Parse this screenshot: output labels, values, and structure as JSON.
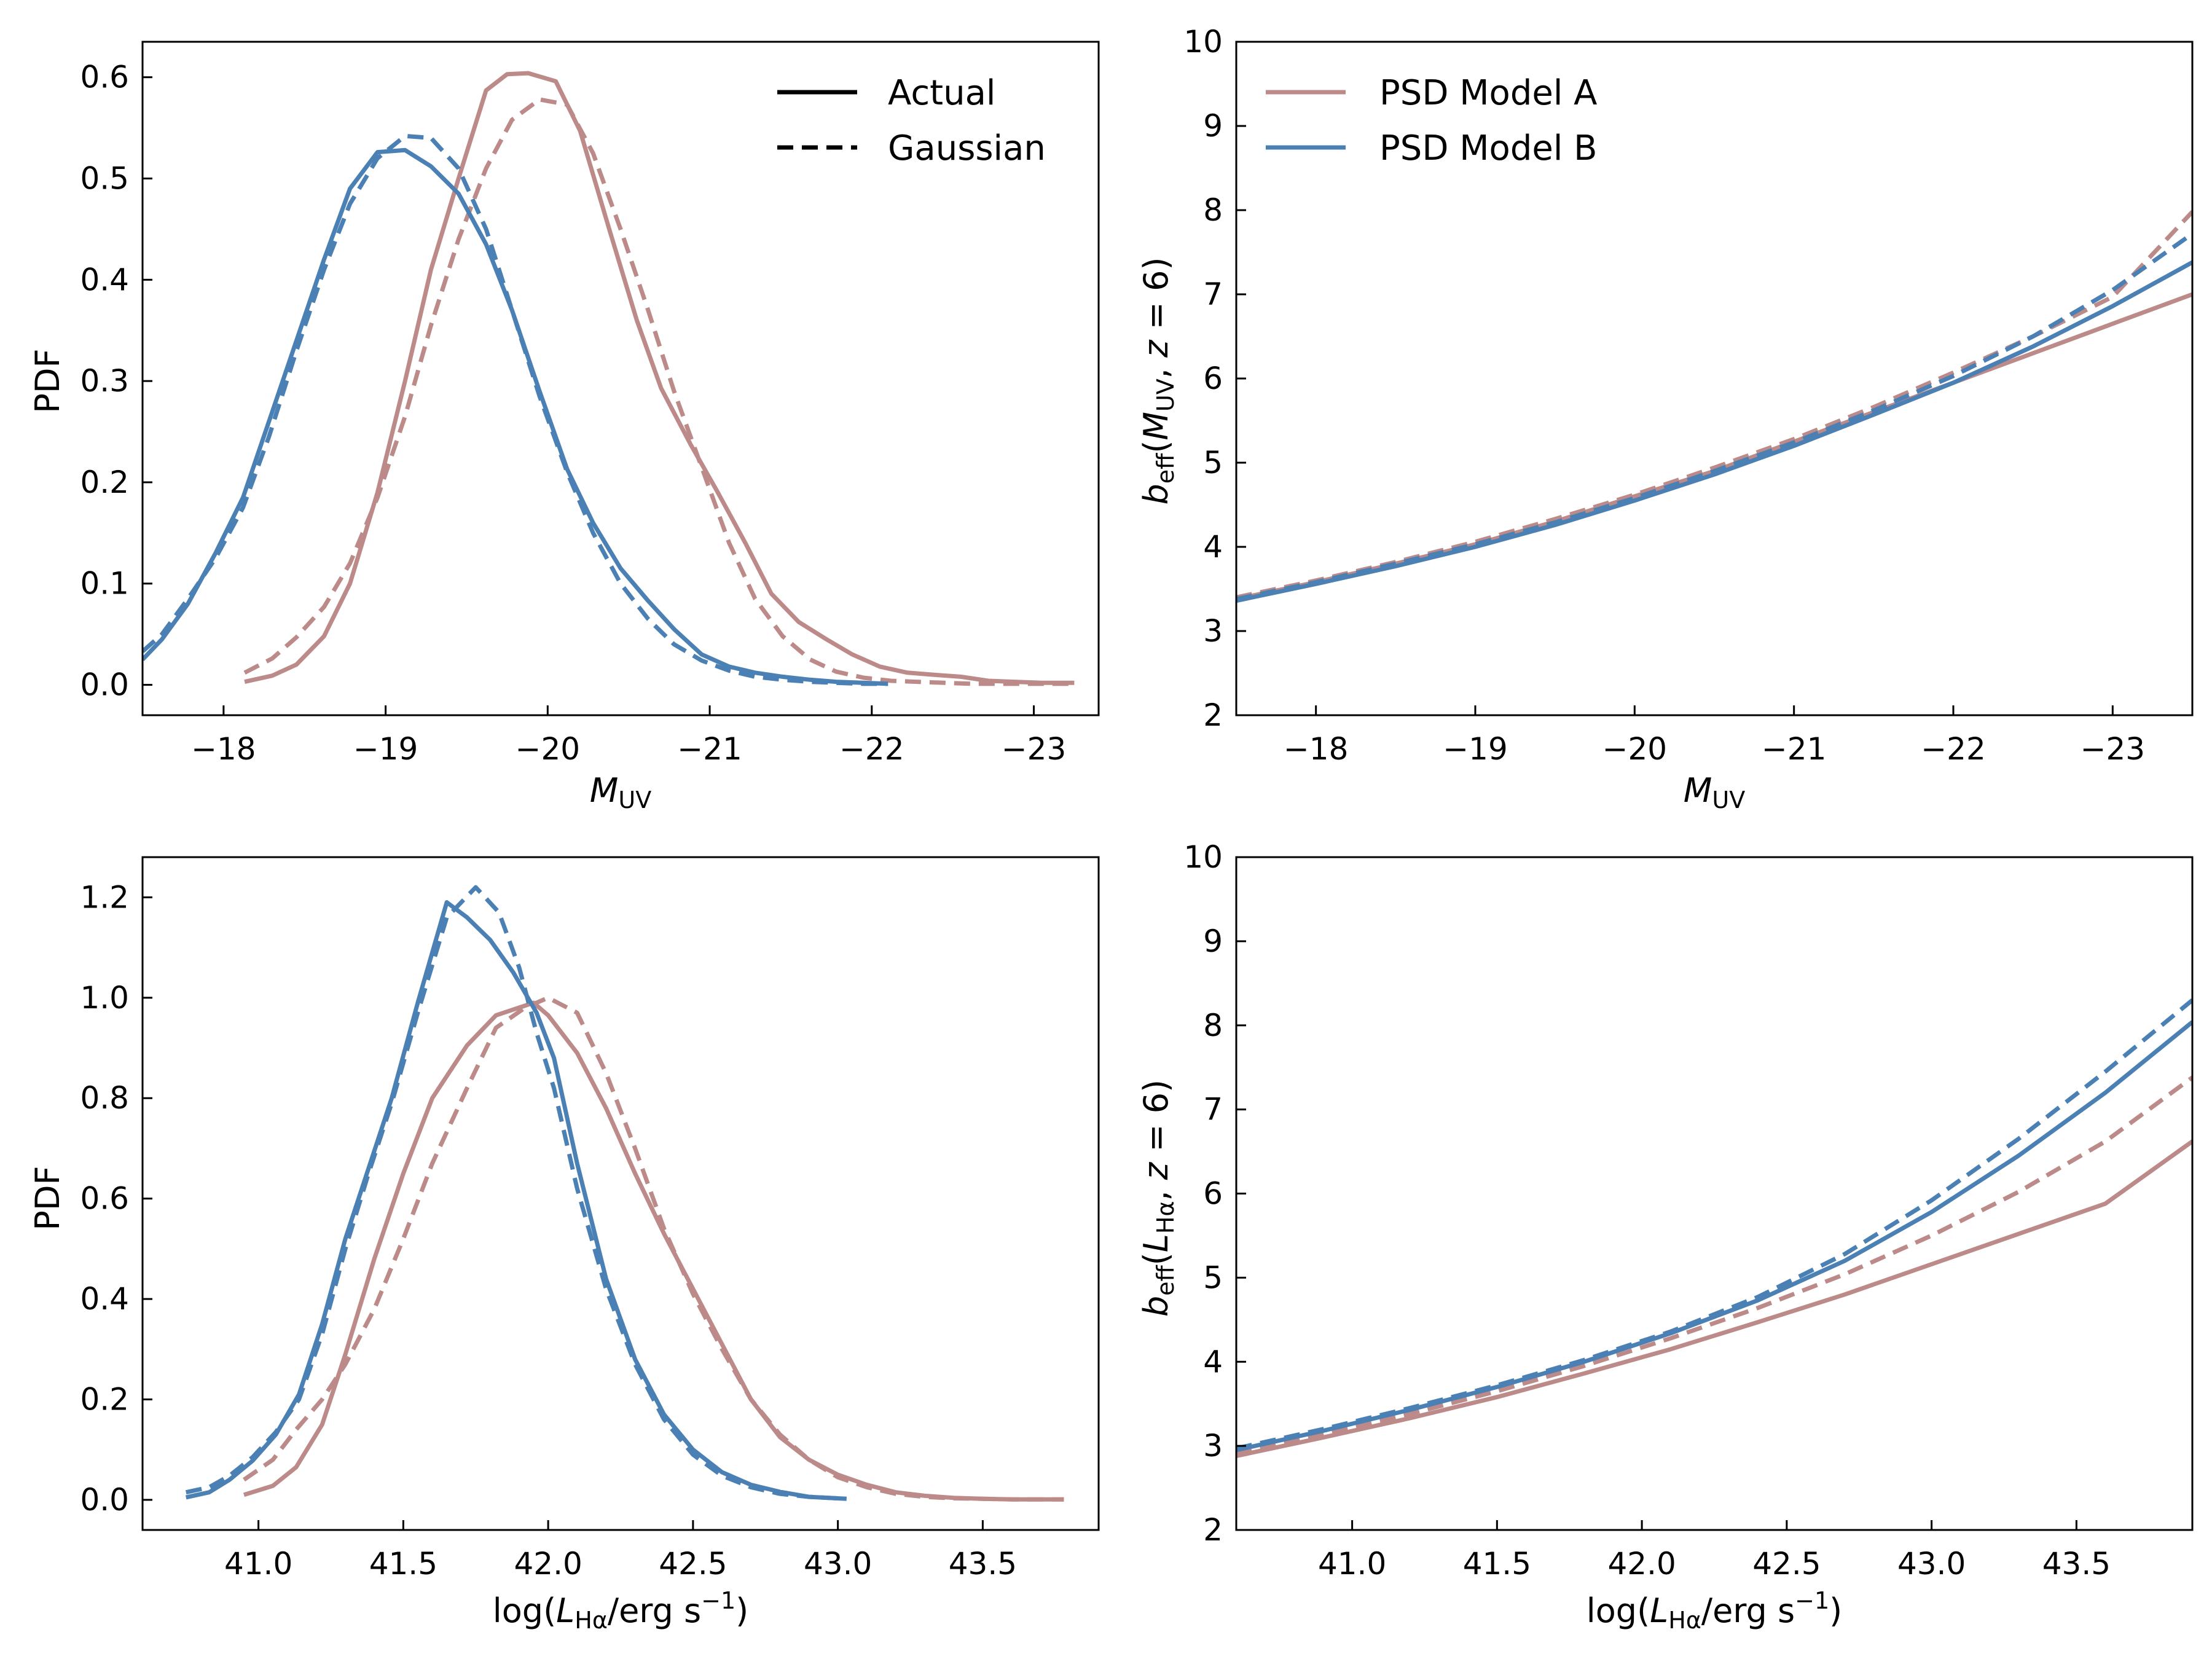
{
  "colors": {
    "model_a": "#bc8a89",
    "model_b": "#4a80b4"
  },
  "legend_style": [
    {
      "name": "Actual",
      "dash": false
    },
    {
      "name": "Gaussian",
      "dash": true
    }
  ],
  "legend_models": [
    {
      "name": "PSD Model A",
      "color": "#bc8a89"
    },
    {
      "name": "PSD Model B",
      "color": "#4a80b4"
    }
  ],
  "chart_data": [
    {
      "id": "muv_pdf",
      "type": "line",
      "position": "top-left",
      "xlabel": "M_UV",
      "ylabel": "PDF",
      "x_inverted": true,
      "xlim": [
        -17.5,
        -23.4
      ],
      "ylim": [
        -0.03,
        0.635
      ],
      "xticks": [
        -18,
        -19,
        -20,
        -21,
        -22,
        -23
      ],
      "xtick_labels": [
        "−18",
        "−19",
        "−20",
        "−21",
        "−22",
        "−23"
      ],
      "yticks": [
        0,
        0.1,
        0.2,
        0.3,
        0.4,
        0.5,
        0.6
      ],
      "ytick_labels": [
        "0.0",
        "0.1",
        "0.2",
        "0.3",
        "0.4",
        "0.5",
        "0.6"
      ],
      "legend": "top-right",
      "series": [
        {
          "name": "PSD Model A - Actual",
          "color": "model_a",
          "dash": false,
          "x": [
            -18.13,
            -18.3,
            -18.45,
            -18.62,
            -18.78,
            -18.95,
            -19.12,
            -19.28,
            -19.45,
            -19.62,
            -19.75,
            -19.88,
            -20.05,
            -20.2,
            -20.38,
            -20.55,
            -20.7,
            -20.88,
            -21.05,
            -21.22,
            -21.38,
            -21.55,
            -21.72,
            -21.88,
            -22.05,
            -22.22,
            -22.38,
            -22.55,
            -22.72,
            -22.88,
            -23.05,
            -23.25
          ],
          "y": [
            0.003,
            0.009,
            0.02,
            0.048,
            0.1,
            0.19,
            0.3,
            0.41,
            0.5,
            0.587,
            0.603,
            0.604,
            0.596,
            0.547,
            0.45,
            0.36,
            0.293,
            0.238,
            0.19,
            0.14,
            0.09,
            0.062,
            0.045,
            0.03,
            0.018,
            0.012,
            0.01,
            0.008,
            0.004,
            0.003,
            0.002,
            0.002
          ]
        },
        {
          "name": "PSD Model A - Gaussian",
          "color": "model_a",
          "dash": true,
          "x": [
            -18.13,
            -18.3,
            -18.45,
            -18.62,
            -18.78,
            -18.95,
            -19.12,
            -19.28,
            -19.45,
            -19.62,
            -19.78,
            -19.95,
            -20.12,
            -20.28,
            -20.45,
            -20.62,
            -20.78,
            -20.95,
            -21.12,
            -21.28,
            -21.45,
            -21.62,
            -21.78,
            -21.95,
            -22.12,
            -22.28,
            -22.45,
            -22.62,
            -22.78,
            -22.95,
            -23.12,
            -23.25
          ],
          "y": [
            0.012,
            0.026,
            0.047,
            0.077,
            0.12,
            0.185,
            0.265,
            0.355,
            0.44,
            0.51,
            0.558,
            0.578,
            0.573,
            0.525,
            0.45,
            0.37,
            0.29,
            0.215,
            0.14,
            0.085,
            0.048,
            0.025,
            0.013,
            0.007,
            0.004,
            0.003,
            0.002,
            0.001,
            0.001,
            0.001,
            0.001,
            0.001
          ]
        },
        {
          "name": "PSD Model B - Actual",
          "color": "model_b",
          "dash": false,
          "x": [
            -17.5,
            -17.62,
            -17.78,
            -17.95,
            -18.12,
            -18.28,
            -18.45,
            -18.62,
            -18.78,
            -18.95,
            -19.12,
            -19.28,
            -19.45,
            -19.62,
            -19.78,
            -19.95,
            -20.12,
            -20.28,
            -20.45,
            -20.62,
            -20.78,
            -20.95,
            -21.12,
            -21.28,
            -21.45,
            -21.62,
            -21.78,
            -21.95,
            -22.1
          ],
          "y": [
            0.025,
            0.045,
            0.08,
            0.13,
            0.185,
            0.26,
            0.34,
            0.42,
            0.49,
            0.526,
            0.528,
            0.512,
            0.485,
            0.435,
            0.37,
            0.29,
            0.213,
            0.16,
            0.115,
            0.083,
            0.055,
            0.03,
            0.018,
            0.012,
            0.008,
            0.005,
            0.003,
            0.002,
            0.001
          ]
        },
        {
          "name": "PSD Model B - Gaussian",
          "color": "model_b",
          "dash": true,
          "x": [
            -17.5,
            -17.62,
            -17.78,
            -17.95,
            -18.12,
            -18.28,
            -18.45,
            -18.62,
            -18.78,
            -18.95,
            -19.12,
            -19.28,
            -19.45,
            -19.62,
            -19.78,
            -19.95,
            -20.12,
            -20.28,
            -20.45,
            -20.62,
            -20.78,
            -20.95,
            -21.12,
            -21.28,
            -21.45,
            -21.62,
            -21.78,
            -21.95,
            -22.1
          ],
          "y": [
            0.033,
            0.05,
            0.085,
            0.125,
            0.175,
            0.245,
            0.33,
            0.41,
            0.475,
            0.52,
            0.542,
            0.54,
            0.51,
            0.45,
            0.37,
            0.285,
            0.21,
            0.15,
            0.1,
            0.065,
            0.04,
            0.024,
            0.014,
            0.008,
            0.005,
            0.003,
            0.002,
            0.001,
            0.001
          ]
        }
      ]
    },
    {
      "id": "muv_bias",
      "type": "line",
      "position": "top-right",
      "xlabel": "M_UV",
      "ylabel": "b_eff(M_UV, z = 6)",
      "x_inverted": true,
      "xlim": [
        -17.5,
        -23.5
      ],
      "ylim": [
        2,
        10
      ],
      "xticks": [
        -18,
        -19,
        -20,
        -21,
        -22,
        -23
      ],
      "xtick_labels": [
        "−18",
        "−19",
        "−20",
        "−21",
        "−22",
        "−23"
      ],
      "yticks": [
        2,
        3,
        4,
        5,
        6,
        7,
        8,
        9,
        10
      ],
      "ytick_labels": [
        "2",
        "3",
        "4",
        "5",
        "6",
        "7",
        "8",
        "9",
        "10"
      ],
      "legend": "top-left",
      "series": [
        {
          "name": "PSD Model A - Actual",
          "color": "model_a",
          "dash": false,
          "x": [
            -17.5,
            -18,
            -18.5,
            -19,
            -19.5,
            -20,
            -20.5,
            -21,
            -21.5,
            -22,
            -22.5,
            -23,
            -23.5
          ],
          "y": [
            3.38,
            3.58,
            3.8,
            4.03,
            4.3,
            4.6,
            4.9,
            5.25,
            5.6,
            5.95,
            6.3,
            6.65,
            7.0
          ]
        },
        {
          "name": "PSD Model A - Gaussian",
          "color": "model_a",
          "dash": true,
          "x": [
            -17.5,
            -18,
            -18.5,
            -19,
            -19.5,
            -20,
            -20.5,
            -21,
            -21.5,
            -22,
            -22.5,
            -23,
            -23.5
          ],
          "y": [
            3.4,
            3.6,
            3.82,
            4.06,
            4.33,
            4.62,
            4.94,
            5.28,
            5.66,
            6.07,
            6.5,
            6.97,
            7.98
          ]
        },
        {
          "name": "PSD Model B - Actual",
          "color": "model_b",
          "dash": false,
          "x": [
            -17.5,
            -18,
            -18.5,
            -19,
            -19.5,
            -20,
            -20.5,
            -21,
            -21.5,
            -22,
            -22.5,
            -23,
            -23.5
          ],
          "y": [
            3.36,
            3.56,
            3.77,
            4.0,
            4.26,
            4.55,
            4.86,
            5.2,
            5.57,
            5.95,
            6.38,
            6.86,
            7.38
          ]
        },
        {
          "name": "PSD Model B - Gaussian",
          "color": "model_b",
          "dash": true,
          "x": [
            -17.5,
            -18,
            -18.5,
            -19,
            -19.5,
            -20,
            -20.5,
            -21,
            -21.5,
            -22,
            -22.5,
            -23,
            -23.5
          ],
          "y": [
            3.38,
            3.58,
            3.8,
            4.03,
            4.29,
            4.58,
            4.9,
            5.24,
            5.62,
            6.03,
            6.5,
            7.05,
            7.72
          ]
        }
      ]
    },
    {
      "id": "lha_pdf",
      "type": "line",
      "position": "bottom-left",
      "xlabel": "log(L_Hα / erg s^-1)",
      "ylabel": "PDF",
      "x_inverted": false,
      "xlim": [
        40.6,
        43.9
      ],
      "ylim": [
        -0.06,
        1.28
      ],
      "xticks": [
        41.0,
        41.5,
        42.0,
        42.5,
        43.0,
        43.5
      ],
      "xtick_labels": [
        "41.0",
        "41.5",
        "42.0",
        "42.5",
        "43.0",
        "43.5"
      ],
      "yticks": [
        0,
        0.2,
        0.4,
        0.6,
        0.8,
        1.0,
        1.2
      ],
      "ytick_labels": [
        "0.0",
        "0.2",
        "0.4",
        "0.6",
        "0.8",
        "1.0",
        "1.2"
      ],
      "series": [
        {
          "name": "PSD Model A - Actual",
          "color": "model_a",
          "dash": false,
          "x": [
            40.95,
            41.05,
            41.13,
            41.22,
            41.3,
            41.4,
            41.5,
            41.6,
            41.72,
            41.82,
            41.95,
            42.0,
            42.1,
            42.2,
            42.3,
            42.4,
            42.5,
            42.6,
            42.7,
            42.8,
            42.9,
            43.0,
            43.1,
            43.2,
            43.3,
            43.4,
            43.5,
            43.6,
            43.78
          ],
          "y": [
            0.01,
            0.028,
            0.065,
            0.15,
            0.29,
            0.48,
            0.65,
            0.8,
            0.905,
            0.965,
            0.99,
            0.965,
            0.89,
            0.78,
            0.65,
            0.53,
            0.42,
            0.31,
            0.2,
            0.125,
            0.08,
            0.05,
            0.03,
            0.015,
            0.008,
            0.004,
            0.002,
            0.001,
            0.001
          ]
        },
        {
          "name": "PSD Model A - Gaussian",
          "color": "model_a",
          "dash": true,
          "x": [
            40.95,
            41.05,
            41.13,
            41.22,
            41.3,
            41.4,
            41.5,
            41.6,
            41.72,
            41.82,
            41.92,
            42.0,
            42.1,
            42.2,
            42.3,
            42.4,
            42.5,
            42.6,
            42.7,
            42.8,
            42.9,
            43.0,
            43.1,
            43.2,
            43.3,
            43.4,
            43.5,
            43.6,
            43.78
          ],
          "y": [
            0.04,
            0.08,
            0.14,
            0.2,
            0.27,
            0.38,
            0.52,
            0.67,
            0.82,
            0.94,
            0.98,
            1.0,
            0.97,
            0.85,
            0.7,
            0.54,
            0.41,
            0.3,
            0.2,
            0.13,
            0.08,
            0.045,
            0.025,
            0.012,
            0.006,
            0.003,
            0.002,
            0.001,
            0.001
          ]
        },
        {
          "name": "PSD Model B - Actual",
          "color": "model_b",
          "dash": false,
          "x": [
            40.75,
            40.83,
            40.9,
            40.98,
            41.06,
            41.14,
            41.22,
            41.3,
            41.38,
            41.46,
            41.55,
            41.65,
            41.72,
            41.8,
            41.88,
            41.96,
            42.02,
            42.1,
            42.2,
            42.3,
            42.4,
            42.5,
            42.6,
            42.7,
            42.8,
            42.9,
            43.03
          ],
          "y": [
            0.005,
            0.015,
            0.04,
            0.078,
            0.13,
            0.21,
            0.35,
            0.52,
            0.66,
            0.8,
            0.99,
            1.19,
            1.16,
            1.115,
            1.05,
            0.97,
            0.88,
            0.67,
            0.44,
            0.28,
            0.17,
            0.1,
            0.055,
            0.03,
            0.016,
            0.006,
            0.002
          ]
        },
        {
          "name": "PSD Model B - Gaussian",
          "color": "model_b",
          "dash": true,
          "x": [
            40.75,
            40.83,
            40.9,
            40.98,
            41.06,
            41.14,
            41.22,
            41.3,
            41.38,
            41.46,
            41.55,
            41.65,
            41.75,
            41.83,
            41.9,
            41.96,
            42.02,
            42.1,
            42.2,
            42.3,
            42.4,
            42.5,
            42.6,
            42.7,
            42.8,
            42.9,
            43.0
          ],
          "y": [
            0.015,
            0.025,
            0.048,
            0.085,
            0.135,
            0.2,
            0.33,
            0.5,
            0.65,
            0.79,
            0.97,
            1.16,
            1.22,
            1.17,
            1.06,
            0.93,
            0.82,
            0.62,
            0.42,
            0.27,
            0.16,
            0.09,
            0.048,
            0.025,
            0.012,
            0.006,
            0.003
          ]
        }
      ]
    },
    {
      "id": "lha_bias",
      "type": "line",
      "position": "bottom-right",
      "xlabel": "log(L_Hα / erg s^-1)",
      "ylabel": "b_eff(L_Hα, z = 6)",
      "x_inverted": false,
      "xlim": [
        40.6,
        43.9
      ],
      "ylim": [
        2,
        10
      ],
      "xticks": [
        41.0,
        41.5,
        42.0,
        42.5,
        43.0,
        43.5
      ],
      "xtick_labels": [
        "41.0",
        "41.5",
        "42.0",
        "42.5",
        "43.0",
        "43.5"
      ],
      "yticks": [
        2,
        3,
        4,
        5,
        6,
        7,
        8,
        9,
        10
      ],
      "ytick_labels": [
        "2",
        "3",
        "4",
        "5",
        "6",
        "7",
        "8",
        "9",
        "10"
      ],
      "series": [
        {
          "name": "PSD Model A - Actual",
          "color": "model_a",
          "dash": false,
          "x": [
            40.6,
            40.9,
            41.2,
            41.5,
            41.8,
            42.1,
            42.4,
            42.7,
            43.0,
            43.3,
            43.6,
            43.9
          ],
          "y": [
            2.88,
            3.1,
            3.33,
            3.58,
            3.86,
            4.15,
            4.47,
            4.8,
            5.16,
            5.52,
            5.88,
            6.62
          ]
        },
        {
          "name": "PSD Model A - Gaussian",
          "color": "model_a",
          "dash": true,
          "x": [
            40.6,
            40.9,
            41.2,
            41.5,
            41.8,
            42.1,
            42.4,
            42.7,
            43.0,
            43.3,
            43.6,
            43.9
          ],
          "y": [
            2.9,
            3.13,
            3.38,
            3.65,
            3.95,
            4.28,
            4.64,
            5.04,
            5.5,
            6.02,
            6.62,
            7.38
          ]
        },
        {
          "name": "PSD Model B - Actual",
          "color": "model_b",
          "dash": false,
          "x": [
            40.6,
            40.9,
            41.2,
            41.5,
            41.8,
            42.1,
            42.4,
            42.7,
            43.0,
            43.3,
            43.6,
            43.9
          ],
          "y": [
            2.95,
            3.18,
            3.43,
            3.7,
            4.0,
            4.34,
            4.73,
            5.2,
            5.78,
            6.45,
            7.2,
            8.04
          ]
        },
        {
          "name": "PSD Model B - Gaussian",
          "color": "model_b",
          "dash": true,
          "x": [
            40.6,
            40.9,
            41.2,
            41.5,
            41.8,
            42.1,
            42.4,
            42.7,
            43.0,
            43.3,
            43.6,
            43.9
          ],
          "y": [
            2.97,
            3.2,
            3.45,
            3.72,
            4.02,
            4.36,
            4.77,
            5.28,
            5.92,
            6.65,
            7.45,
            8.3
          ]
        }
      ]
    }
  ]
}
